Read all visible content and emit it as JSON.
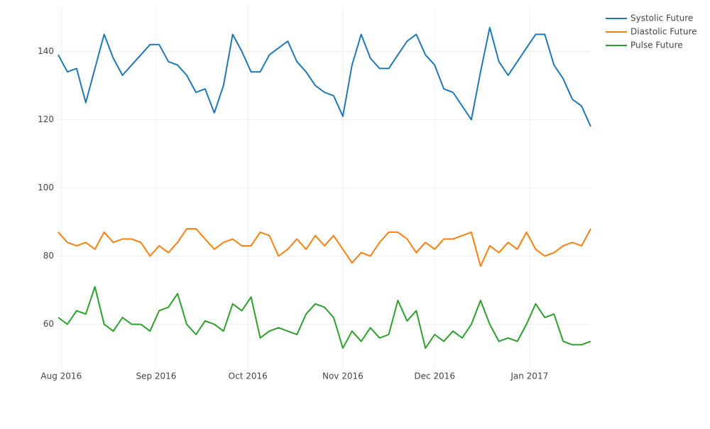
{
  "chart_data": {
    "type": "line",
    "x": [
      "2016-07-31",
      "2016-08-03",
      "2016-08-06",
      "2016-08-09",
      "2016-08-12",
      "2016-08-15",
      "2016-08-18",
      "2016-08-21",
      "2016-08-24",
      "2016-08-27",
      "2016-08-30",
      "2016-09-02",
      "2016-09-05",
      "2016-09-08",
      "2016-09-11",
      "2016-09-14",
      "2016-09-17",
      "2016-09-20",
      "2016-09-23",
      "2016-09-26",
      "2016-09-29",
      "2016-10-02",
      "2016-10-05",
      "2016-10-08",
      "2016-10-11",
      "2016-10-14",
      "2016-10-17",
      "2016-10-20",
      "2016-10-23",
      "2016-10-26",
      "2016-10-29",
      "2016-11-01",
      "2016-11-04",
      "2016-11-07",
      "2016-11-10",
      "2016-11-13",
      "2016-11-16",
      "2016-11-19",
      "2016-11-22",
      "2016-11-25",
      "2016-11-28",
      "2016-12-01",
      "2016-12-04",
      "2016-12-07",
      "2016-12-10",
      "2016-12-13",
      "2016-12-16",
      "2016-12-19",
      "2016-12-22",
      "2016-12-25",
      "2016-12-28",
      "2016-12-31",
      "2017-01-03",
      "2017-01-06",
      "2017-01-09",
      "2017-01-12",
      "2017-01-15",
      "2017-01-18",
      "2017-01-21"
    ],
    "series": [
      {
        "name": "Systolic Future",
        "color": "#1f77b4",
        "values": [
          139,
          134,
          135,
          125,
          135,
          145,
          138,
          133,
          136,
          139,
          142,
          142,
          137,
          136,
          133,
          128,
          129,
          122,
          130,
          145,
          140,
          134,
          134,
          139,
          141,
          143,
          137,
          134,
          130,
          128,
          127,
          121,
          136,
          145,
          138,
          135,
          135,
          139,
          143,
          145,
          139,
          136,
          129,
          128,
          124,
          120,
          134,
          147,
          137,
          133,
          137,
          141,
          145,
          145,
          136,
          132,
          126,
          124,
          118
        ]
      },
      {
        "name": "Diastolic Future",
        "color": "#ff7f0e",
        "values": [
          87,
          84,
          83,
          84,
          82,
          87,
          84,
          85,
          85,
          84,
          80,
          83,
          81,
          84,
          88,
          88,
          85,
          82,
          84,
          85,
          83,
          83,
          87,
          86,
          80,
          82,
          85,
          82,
          86,
          83,
          86,
          82,
          78,
          81,
          80,
          84,
          87,
          87,
          85,
          81,
          84,
          82,
          85,
          85,
          86,
          87,
          77,
          83,
          81,
          84,
          82,
          87,
          82,
          80,
          81,
          83,
          84,
          83,
          88
        ]
      },
      {
        "name": "Pulse Future",
        "color": "#2ca02c",
        "values": [
          62,
          60,
          64,
          63,
          71,
          60,
          58,
          62,
          60,
          60,
          58,
          64,
          65,
          69,
          60,
          57,
          61,
          60,
          58,
          66,
          64,
          68,
          56,
          58,
          59,
          58,
          57,
          63,
          66,
          65,
          62,
          53,
          58,
          55,
          59,
          56,
          57,
          67,
          61,
          64,
          53,
          57,
          55,
          58,
          56,
          60,
          67,
          60,
          55,
          56,
          55,
          60,
          66,
          62,
          63,
          55,
          54,
          54,
          55
        ]
      }
    ],
    "xlim": [
      "2016-07-31",
      "2017-01-21"
    ],
    "xticks": [
      {
        "value": "2016-08-01",
        "label": "Aug 2016"
      },
      {
        "value": "2016-09-01",
        "label": "Sep 2016"
      },
      {
        "value": "2016-10-01",
        "label": "Oct 2016"
      },
      {
        "value": "2016-11-01",
        "label": "Nov 2016"
      },
      {
        "value": "2016-12-01",
        "label": "Dec 2016"
      },
      {
        "value": "2017-01-01",
        "label": "Jan 2017"
      }
    ],
    "ylim": [
      47,
      153
    ],
    "yticks": [
      60,
      80,
      100,
      120,
      140
    ],
    "grid": true,
    "legend": "top-right"
  }
}
